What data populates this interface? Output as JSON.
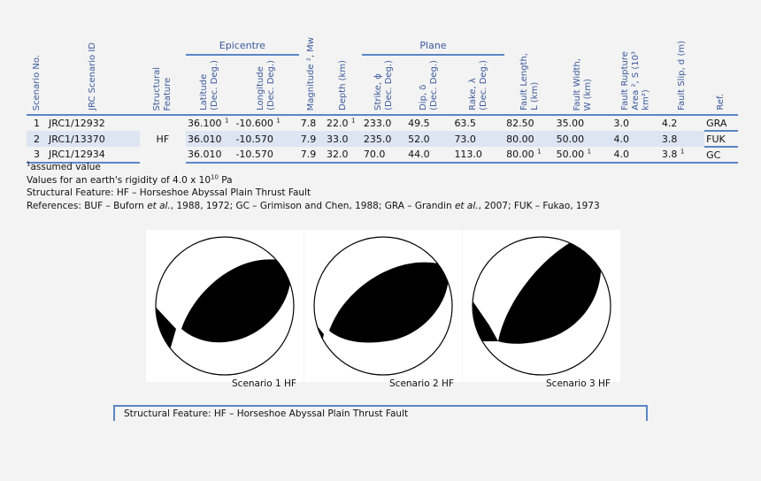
{
  "table": {
    "group_epicentre": "Epicentre",
    "group_plane": "Plane",
    "headers": {
      "scenario_no": "Scenario No.",
      "scenario_id": "JRC Scenario ID",
      "structural": "Structural\nFeature",
      "lat": "Latitude\n(Dec. Deg.)",
      "lon": "Longitude\n(Dec. Deg.)",
      "mag": "Magnitude ², Mw",
      "depth": "Depth (km)",
      "strike": "Strike, ϕ\n(Dec. Deg.)",
      "dip": "Dip, δ\n(Dec. Deg.)",
      "rake": "Rake, λ\n(Dec. Deg.)",
      "length": "Fault Length,\nL (km)",
      "width": "Fault Width,\nW (km)",
      "area": "Fault Rupture\nArea ², S (10³\nkm²)",
      "slip": "Fault Slip, d (m)",
      "ref": "Ref."
    },
    "rows": [
      {
        "no": "1",
        "id": "JRC1/12932",
        "lat": "36.100",
        "lat_sup": "1",
        "lon": "-10.600",
        "lon_sup": "1",
        "mag": "7.8",
        "depth": "22.0",
        "depth_sup": "1",
        "strike": "233.0",
        "dip": "49.5",
        "rake": "63.5",
        "length": "82.50",
        "length_sup": "",
        "width": "35.00",
        "width_sup": "",
        "area": "3.0",
        "slip": "4.2",
        "slip_sup": "",
        "ref": "GRA"
      },
      {
        "no": "2",
        "id": "JRC1/13370",
        "lat": "36.010",
        "lat_sup": "",
        "lon": "-10.570",
        "lon_sup": "",
        "mag": "7.9",
        "depth": "33.0",
        "depth_sup": "",
        "strike": "235.0",
        "dip": "52.0",
        "rake": "73.0",
        "length": "80.00",
        "length_sup": "",
        "width": "50.00",
        "width_sup": "",
        "area": "4.0",
        "slip": "3.8",
        "slip_sup": "",
        "ref": "FUK"
      },
      {
        "no": "3",
        "id": "JRC1/12934",
        "lat": "36.010",
        "lat_sup": "",
        "lon": "-10.570",
        "lon_sup": "",
        "mag": "7.9",
        "depth": "32.0",
        "depth_sup": "",
        "strike": "70.0",
        "dip": "44.0",
        "rake": "113.0",
        "length": "80.00",
        "length_sup": "1",
        "width": "50.00",
        "width_sup": "1",
        "area": "4.0",
        "slip": "3.8",
        "slip_sup": "1",
        "ref": "GC"
      }
    ],
    "structural_feature": "HF"
  },
  "notes": {
    "note1_sup": "1",
    "note1": "assumed value",
    "note2_pre": "Values for an earth's rigidity of 4.0 x 10",
    "note2_sup": "10",
    "note2_post": " Pa",
    "note3": "Structural Feature: HF – Horseshoe Abyssal Plain Thrust Fault",
    "refs_a": "References: BUF – Buforn ",
    "refs_etal1": "et al.",
    "refs_b": ", 1988, 1972; GC – Grimison and Chen, 1988; GRA – Grandin ",
    "refs_etal2": "et al.",
    "refs_c": ", 2007; FUK – Fukao, 1973"
  },
  "figures": [
    {
      "caption": "Scenario 1 HF"
    },
    {
      "caption": "Scenario 2 HF"
    },
    {
      "caption": "Scenario 3 HF"
    }
  ],
  "bottom_caption": "Structural Feature: HF – Horseshoe Abyssal Plain Thrust Fault",
  "colors": {
    "accent": "#5b86c6",
    "header_text": "#3a5a9c",
    "row_shade": "#dde5f3",
    "background": "#f3f3f3"
  }
}
